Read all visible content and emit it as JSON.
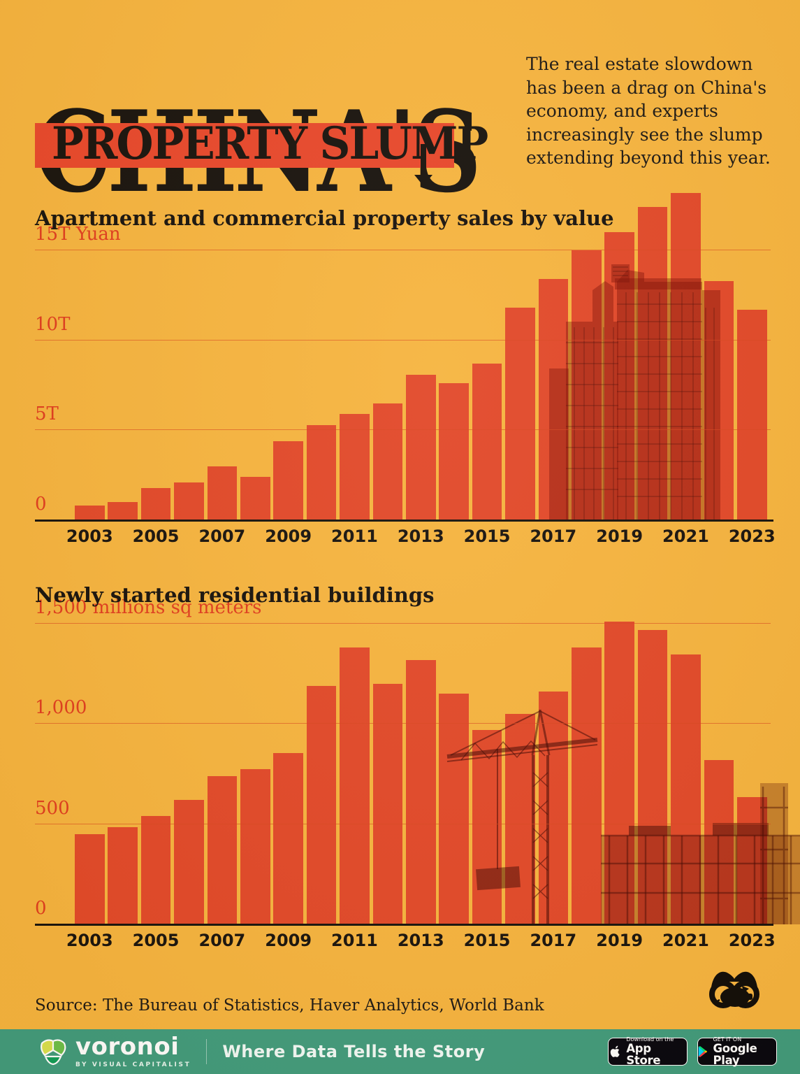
{
  "colors": {
    "background": "#F6B43F",
    "bar_red": "#E24829",
    "accent_red": "#E8472B",
    "label_red": "#E03D1F",
    "ink_black": "#17120D",
    "footer_teal": "#3F9B7D"
  },
  "header": {
    "title_line1": "CHINA'S",
    "title_line2": "PROPERTY SLUMP",
    "intro": "The real estate slowdown has been a drag on China's economy, and experts increasingly see the slump extending beyond this year."
  },
  "chart_data": [
    {
      "type": "bar",
      "title": "Apartment and commercial property sales by value",
      "unit": "trillion yuan",
      "categories": [
        2003,
        2004,
        2005,
        2006,
        2007,
        2008,
        2009,
        2010,
        2011,
        2012,
        2013,
        2014,
        2015,
        2016,
        2017,
        2018,
        2019,
        2020,
        2021,
        2022,
        2023
      ],
      "values": [
        0.8,
        1.0,
        1.8,
        2.1,
        3.0,
        2.4,
        4.4,
        5.3,
        5.9,
        6.5,
        8.1,
        7.6,
        8.7,
        11.8,
        13.4,
        15.0,
        16.0,
        17.4,
        18.2,
        13.3,
        11.7
      ],
      "ylim": [
        0,
        18.8
      ],
      "grid": "horizontal",
      "legend": "none",
      "y_ticks": [
        {
          "value": 15,
          "label": "15T Yuan"
        },
        {
          "value": 10,
          "label": "10T"
        },
        {
          "value": 5,
          "label": "5T"
        },
        {
          "value": 0,
          "label": "0"
        }
      ],
      "x_tick_labels": [
        "2003",
        "2005",
        "2007",
        "2009",
        "2011",
        "2013",
        "2015",
        "2017",
        "2019",
        "2021",
        "2023"
      ]
    },
    {
      "type": "bar",
      "title": "Newly started residential buildings",
      "unit": "millions sq meters",
      "categories": [
        2003,
        2004,
        2005,
        2006,
        2007,
        2008,
        2009,
        2010,
        2011,
        2012,
        2013,
        2014,
        2015,
        2016,
        2017,
        2018,
        2019,
        2020,
        2021,
        2022,
        2023
      ],
      "values": [
        450,
        485,
        540,
        620,
        740,
        775,
        855,
        1190,
        1380,
        1200,
        1320,
        1150,
        970,
        1050,
        1160,
        1380,
        1510,
        1470,
        1345,
        820,
        635
      ],
      "ylim": [
        0,
        1545
      ],
      "grid": "horizontal",
      "legend": "none",
      "y_ticks": [
        {
          "value": 1500,
          "label": "1,500 millions sq meters"
        },
        {
          "value": 1000,
          "label": "1,000"
        },
        {
          "value": 500,
          "label": "500"
        },
        {
          "value": 0,
          "label": "0"
        }
      ],
      "x_tick_labels": [
        "2003",
        "2005",
        "2007",
        "2009",
        "2011",
        "2013",
        "2015",
        "2017",
        "2019",
        "2021",
        "2023"
      ]
    }
  ],
  "source": "Source: The Bureau of Statistics, Haver Analytics, World Bank",
  "footer": {
    "brand": "voronoi",
    "brand_sub": "BY VISUAL CAPITALIST",
    "tagline": "Where Data Tells the Story",
    "appstore_line1": "Download on the",
    "appstore_line2": "App Store",
    "googleplay_line1": "GET IT ON",
    "googleplay_line2": "Google Play"
  }
}
